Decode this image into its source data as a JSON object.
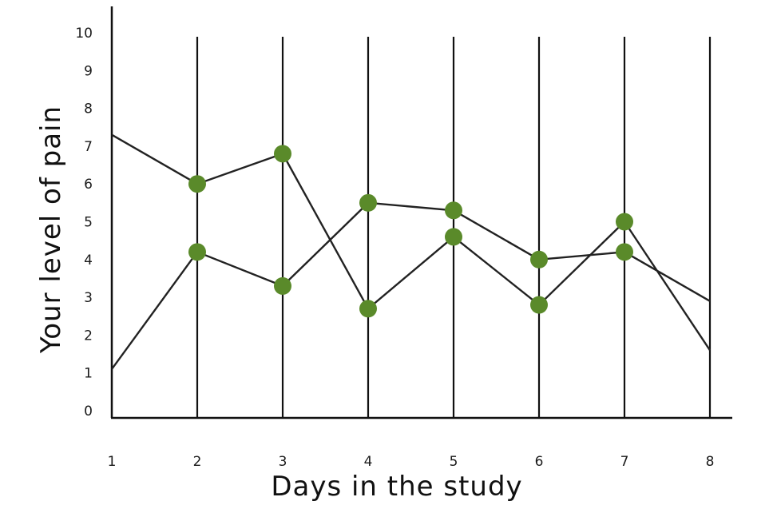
{
  "chart_data": {
    "type": "line",
    "title": "",
    "xlabel": "Days in the study",
    "ylabel": "Your level of pain",
    "x": [
      1,
      2,
      3,
      4,
      5,
      6,
      7,
      8
    ],
    "xlim": [
      1,
      8
    ],
    "ylim": [
      0,
      10
    ],
    "xticks": [
      "1",
      "2",
      "3",
      "4",
      "5",
      "6",
      "7",
      "8"
    ],
    "yticks": [
      "0",
      "1",
      "2",
      "3",
      "4",
      "5",
      "6",
      "7",
      "8",
      "9",
      "10"
    ],
    "series": [
      {
        "values": [
          7.3,
          6.0,
          6.8,
          2.7,
          4.6,
          2.8,
          5.0,
          1.6
        ],
        "markers": [
          false,
          true,
          true,
          true,
          true,
          true,
          true,
          false
        ]
      },
      {
        "values": [
          1.1,
          4.2,
          3.3,
          5.5,
          5.3,
          4.0,
          4.2,
          2.9
        ],
        "markers": [
          false,
          true,
          true,
          true,
          true,
          true,
          true,
          false
        ]
      }
    ],
    "vertical_gridlines": true,
    "legend": "none",
    "colors": {
      "line": "#222222",
      "marker": "#5a8a2a",
      "axis": "#111111"
    }
  }
}
